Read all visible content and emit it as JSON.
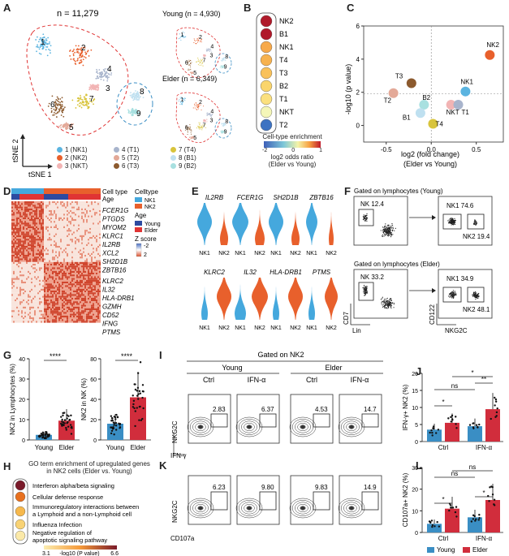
{
  "panel_labels": [
    "A",
    "B",
    "C",
    "D",
    "E",
    "F",
    "G",
    "H",
    "I",
    "J",
    "K",
    "L"
  ],
  "panel_a": {
    "total": "n = 11,279",
    "young": "Young (n = 4,930)",
    "elder": "Elder (n = 6,349)",
    "axis_x": "tSNE 1",
    "axis_y": "tSNE 2",
    "clusters": [
      {
        "num": "1",
        "label": "1 (NK1)",
        "color": "#5bb4e0"
      },
      {
        "num": "2",
        "label": "2 (NK2)",
        "color": "#e8602c"
      },
      {
        "num": "3",
        "label": "3 (NKT)",
        "color": "#f2b4b4"
      },
      {
        "num": "4",
        "label": "4 (T1)",
        "color": "#a8b4cc"
      },
      {
        "num": "5",
        "label": "5 (T2)",
        "color": "#e3a998"
      },
      {
        "num": "6",
        "label": "6 (T3)",
        "color": "#8c5a2e"
      },
      {
        "num": "7",
        "label": "7 (T4)",
        "color": "#d8c43c"
      },
      {
        "num": "8",
        "label": "8 (B1)",
        "color": "#bfe0f0"
      },
      {
        "num": "9",
        "label": "9 (B2)",
        "color": "#a8e0e0"
      }
    ]
  },
  "panel_b": {
    "rows": [
      "NK2",
      "B1",
      "NK1",
      "T4",
      "T3",
      "B2",
      "T1",
      "NKT",
      "T2"
    ],
    "colors": [
      "#b0192a",
      "#b0192a",
      "#f7a94a",
      "#f7b24e",
      "#f9c15a",
      "#fad56c",
      "#fbe07e",
      "#f4f6b8",
      "#3d73c2"
    ],
    "legend_title": "Cell-type enrichment",
    "ticks": [
      "-2",
      "0",
      "1"
    ],
    "caption1": "log2 odds ratio",
    "caption2": "(Elder vs Young)"
  },
  "panel_c": {
    "ylabel": "-log10 (p value)",
    "xlabel1": "log2 (fold change)",
    "xlabel2": "(Elder vs Young)",
    "yticks": [
      "0",
      "2",
      "4",
      "6"
    ],
    "xticks": [
      "-0.5",
      "0.0",
      "0.5"
    ],
    "points": [
      {
        "label": "NK2",
        "x": 0.65,
        "y": 4.25,
        "color": "#e8602c"
      },
      {
        "label": "NK1",
        "x": 0.38,
        "y": 2.05,
        "color": "#5bb4e0"
      },
      {
        "label": "T3",
        "x": -0.22,
        "y": 2.55,
        "color": "#8c5a2e"
      },
      {
        "label": "T2",
        "x": -0.42,
        "y": 1.95,
        "color": "#e3a998"
      },
      {
        "label": "B2",
        "x": -0.08,
        "y": 1.25,
        "color": "#a8e0e0"
      },
      {
        "label": "NKT",
        "x": 0.22,
        "y": 1.25,
        "color": "#f2b4b4"
      },
      {
        "label": "T1",
        "x": 0.3,
        "y": 1.25,
        "color": "#a8b4cc"
      },
      {
        "label": "B1",
        "x": -0.12,
        "y": 0.75,
        "color": "#bfe0f0"
      },
      {
        "label": "T4",
        "x": 0.02,
        "y": 0.1,
        "color": "#d8c43c"
      }
    ]
  },
  "panel_d": {
    "celltype_label": "Cell type",
    "age_label": "Age",
    "legend_celltype": "Celltype",
    "nk1": "NK1",
    "nk2": "NK2",
    "legend_age": "Age",
    "young": "Young",
    "elder": "Elder",
    "zscore": "Z score",
    "z_hi": "2",
    "z_lo": "-2",
    "genes_top": [
      "FCER1G",
      "PTGDS",
      "MYOM2",
      "KLRC1",
      "IL2RB",
      "XCL2",
      "SH2D1B",
      "ZBTB16"
    ],
    "genes_bottom": [
      "KLRC2",
      "IL32",
      "HLA-DRB1",
      "GZMH",
      "CD52",
      "IFNG",
      "PTMS"
    ]
  },
  "panel_e": {
    "genes_top": [
      "IL2RB",
      "FCER1G",
      "SH2D1B",
      "ZBTB16"
    ],
    "genes_bottom": [
      "KLRC2",
      "IL32",
      "HLA-DRB1",
      "PTMS"
    ],
    "x1": "NK1",
    "x2": "NK2"
  },
  "panel_f": {
    "young_title": "Gated on lymphocytes (Young)",
    "elder_title": "Gated on lymphocytes (Elder)",
    "young_nk": "NK 12.4",
    "young_nk1": "NK1 74.6",
    "young_nk2": "NK2 19.4",
    "elder_nk": "NK 33.2",
    "elder_nk1": "NK1 34.9",
    "elder_nk2": "NK2 48.1",
    "ax_cd7": "CD7",
    "ax_lin": "Lin",
    "ax_cd122": "CD122",
    "ax_nkg2c": "NKG2C"
  },
  "panel_g": {
    "ylabel1": "NK2 in Lymphocytes (%)",
    "ylabel2": "NK2 in NK (%)",
    "sig": "****",
    "x_young": "Young",
    "x_elder": "Elder",
    "y1_ticks": [
      "0",
      "10",
      "20",
      "30",
      "40"
    ],
    "y2_ticks": [
      "0",
      "20",
      "40",
      "60",
      "80"
    ],
    "chart1": {
      "young_mean": 2.5,
      "elder_mean": 9.5
    },
    "chart2": {
      "young_mean": 16,
      "elder_mean": 42
    }
  },
  "panel_h": {
    "title1": "GO term enrichment of upregulated genes",
    "title2": "in NK2 cells (Elder vs. Young)",
    "terms": [
      "Interferon alpha/beta signaling",
      "Cellular defense response",
      "Immunoregulatory interactions between a Lymphoid and a non-Lymphoid cell",
      "Influenza Infection",
      "Negative regulation of apoptotic signaling pathway"
    ],
    "colors": [
      "#7a1a2a",
      "#e8701e",
      "#f6b84c",
      "#f8d274",
      "#fbe9a8"
    ],
    "scale_min": "3.1",
    "scale_max": "6.6",
    "scale_label": "-log10 (P value)"
  },
  "panel_i": {
    "gated": "Gated on NK2",
    "young": "Young",
    "elder": "Elder",
    "ctrl": "Ctrl",
    "ifn": "IFN-α",
    "values": [
      "2.83",
      "6.37",
      "4.53",
      "14.7"
    ],
    "ylabel": "NKG2C",
    "xlabel": "IFN-γ"
  },
  "panel_k": {
    "values": [
      "6.23",
      "9.80",
      "9.83",
      "14.9"
    ],
    "ylabel": "NKG2C",
    "xlabel": "CD107a"
  },
  "panel_j": {
    "ylabel": "IFN-γ+ NK2 (%)",
    "yticks": [
      "0",
      "5",
      "10",
      "15",
      "20"
    ],
    "groups": [
      "Ctrl",
      "IFN-α"
    ],
    "sig_top": "*",
    "sig_b": "**",
    "sig_ns": "ns",
    "sig_ctrl": "*",
    "means": {
      "ctrl_young": 3.5,
      "ctrl_elder": 5.5,
      "ifn_young": 4.5,
      "ifn_elder": 9.5
    }
  },
  "panel_l": {
    "ylabel": "CD107a+ NK2 (%)",
    "yticks": [
      "0",
      "10",
      "20",
      "30"
    ],
    "groups": [
      "Ctrl",
      "IFN-α"
    ],
    "sig_ns1": "ns",
    "sig_ns2": "ns",
    "sig_ctrl": "*",
    "sig_ifn": "*",
    "means": {
      "ctrl_young": 4,
      "ctrl_elder": 11,
      "ifn_young": 7,
      "ifn_elder": 15
    },
    "legend_young": "Young",
    "legend_elder": "Elder",
    "color_young": "#3a8ec4",
    "color_elder": "#d12d3c"
  }
}
